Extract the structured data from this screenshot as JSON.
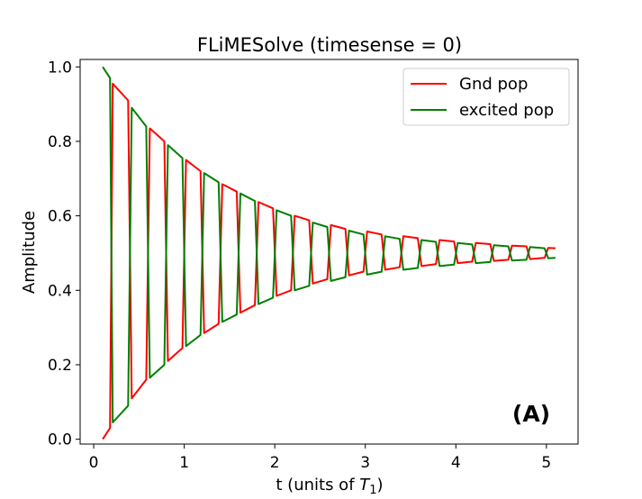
{
  "chart_data": {
    "type": "line",
    "title": "FLiMESolve (timesense = 0)",
    "xlabel": "t (units of ",
    "xlabel_math": "T",
    "xlabel_sub": "1",
    "xlabel_close": ")",
    "ylabel": "Amplitude",
    "xlim": [
      -0.15,
      5.35
    ],
    "ylim": [
      -0.013,
      1.02
    ],
    "xticks": [
      0,
      1,
      2,
      3,
      4,
      5
    ],
    "xtick_labels": [
      "0",
      "1",
      "2",
      "3",
      "4",
      "5"
    ],
    "yticks": [
      0.0,
      0.2,
      0.4,
      0.6,
      0.8,
      1.0
    ],
    "ytick_labels": [
      "0.0",
      "0.2",
      "0.4",
      "0.6",
      "0.8",
      "1.0"
    ],
    "grid": false,
    "legend_position": "top-right",
    "annotation": "(A)",
    "series": [
      {
        "name": "Gnd pop",
        "color": "#ff0000",
        "points": [
          [
            0.1,
            0.0
          ],
          [
            0.18,
            0.03
          ],
          [
            0.21,
            0.955
          ],
          [
            0.38,
            0.91
          ],
          [
            0.42,
            0.11
          ],
          [
            0.58,
            0.16
          ],
          [
            0.62,
            0.835
          ],
          [
            0.78,
            0.8
          ],
          [
            0.82,
            0.21
          ],
          [
            0.98,
            0.245
          ],
          [
            1.02,
            0.75
          ],
          [
            1.18,
            0.72
          ],
          [
            1.22,
            0.285
          ],
          [
            1.38,
            0.31
          ],
          [
            1.42,
            0.685
          ],
          [
            1.58,
            0.665
          ],
          [
            1.62,
            0.34
          ],
          [
            1.78,
            0.36
          ],
          [
            1.82,
            0.637
          ],
          [
            1.98,
            0.62
          ],
          [
            2.02,
            0.385
          ],
          [
            2.18,
            0.4
          ],
          [
            2.22,
            0.6
          ],
          [
            2.38,
            0.588
          ],
          [
            2.42,
            0.418
          ],
          [
            2.58,
            0.43
          ],
          [
            2.62,
            0.575
          ],
          [
            2.78,
            0.565
          ],
          [
            2.82,
            0.44
          ],
          [
            2.98,
            0.45
          ],
          [
            3.02,
            0.558
          ],
          [
            3.18,
            0.55
          ],
          [
            3.22,
            0.455
          ],
          [
            3.38,
            0.462
          ],
          [
            3.42,
            0.545
          ],
          [
            3.58,
            0.54
          ],
          [
            3.62,
            0.465
          ],
          [
            3.78,
            0.47
          ],
          [
            3.82,
            0.535
          ],
          [
            3.98,
            0.531
          ],
          [
            4.02,
            0.473
          ],
          [
            4.18,
            0.477
          ],
          [
            4.22,
            0.527
          ],
          [
            4.38,
            0.524
          ],
          [
            4.42,
            0.479
          ],
          [
            4.58,
            0.482
          ],
          [
            4.62,
            0.52
          ],
          [
            4.78,
            0.518
          ],
          [
            4.82,
            0.484
          ],
          [
            4.98,
            0.487
          ],
          [
            5.02,
            0.514
          ],
          [
            5.1,
            0.513
          ]
        ]
      },
      {
        "name": "excited pop",
        "color": "#008000",
        "points": [
          [
            0.1,
            1.0
          ],
          [
            0.18,
            0.97
          ],
          [
            0.21,
            0.045
          ],
          [
            0.38,
            0.09
          ],
          [
            0.42,
            0.89
          ],
          [
            0.58,
            0.84
          ],
          [
            0.62,
            0.165
          ],
          [
            0.78,
            0.2
          ],
          [
            0.82,
            0.79
          ],
          [
            0.98,
            0.755
          ],
          [
            1.02,
            0.25
          ],
          [
            1.18,
            0.28
          ],
          [
            1.22,
            0.715
          ],
          [
            1.38,
            0.69
          ],
          [
            1.42,
            0.315
          ],
          [
            1.58,
            0.335
          ],
          [
            1.62,
            0.66
          ],
          [
            1.78,
            0.64
          ],
          [
            1.82,
            0.363
          ],
          [
            1.98,
            0.38
          ],
          [
            2.02,
            0.615
          ],
          [
            2.18,
            0.6
          ],
          [
            2.22,
            0.4
          ],
          [
            2.38,
            0.412
          ],
          [
            2.42,
            0.582
          ],
          [
            2.58,
            0.57
          ],
          [
            2.62,
            0.425
          ],
          [
            2.78,
            0.435
          ],
          [
            2.82,
            0.56
          ],
          [
            2.98,
            0.55
          ],
          [
            3.02,
            0.442
          ],
          [
            3.18,
            0.45
          ],
          [
            3.22,
            0.545
          ],
          [
            3.38,
            0.538
          ],
          [
            3.42,
            0.455
          ],
          [
            3.58,
            0.46
          ],
          [
            3.62,
            0.535
          ],
          [
            3.78,
            0.53
          ],
          [
            3.82,
            0.465
          ],
          [
            3.98,
            0.469
          ],
          [
            4.02,
            0.527
          ],
          [
            4.18,
            0.523
          ],
          [
            4.22,
            0.473
          ],
          [
            4.38,
            0.476
          ],
          [
            4.42,
            0.521
          ],
          [
            4.58,
            0.518
          ],
          [
            4.62,
            0.48
          ],
          [
            4.78,
            0.482
          ],
          [
            4.82,
            0.516
          ],
          [
            4.98,
            0.513
          ],
          [
            5.02,
            0.486
          ],
          [
            5.1,
            0.487
          ]
        ]
      }
    ]
  }
}
